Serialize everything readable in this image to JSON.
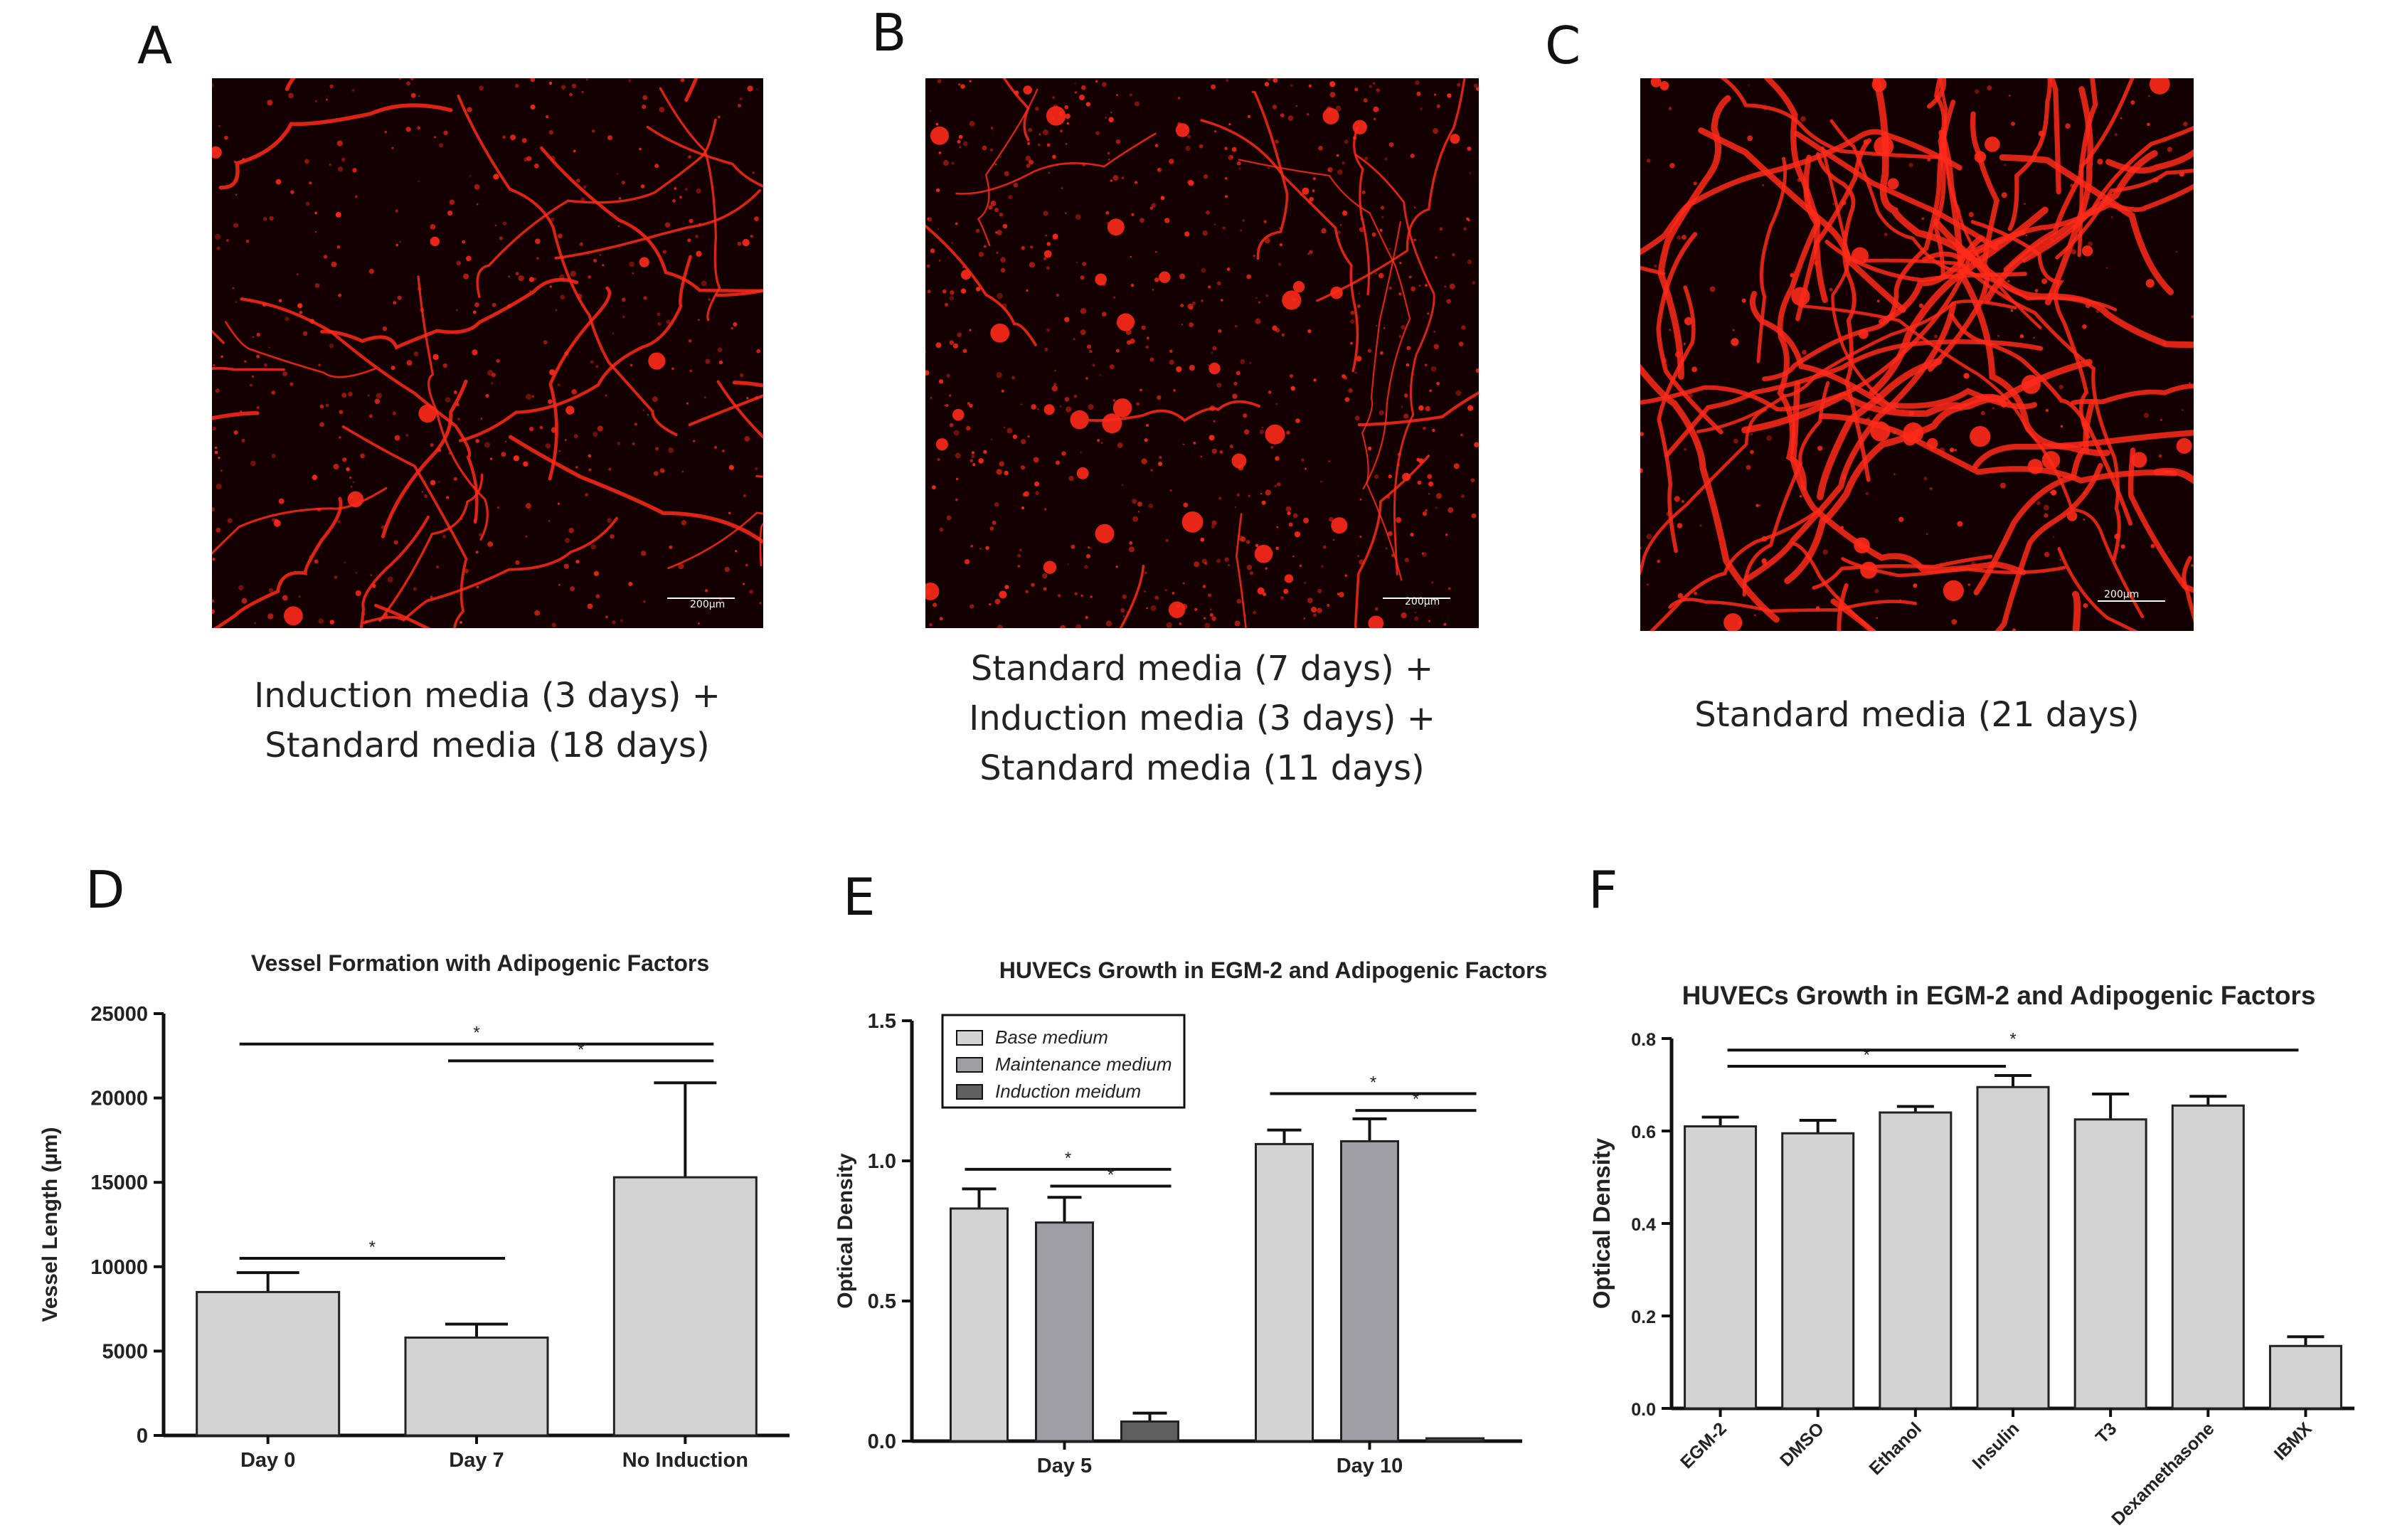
{
  "panels": {
    "A": {
      "letter": "A",
      "scale_bar": "200µm",
      "caption": [
        "Induction media (3 days) +",
        "Standard media (18 days)"
      ]
    },
    "B": {
      "letter": "B",
      "scale_bar": "200µm",
      "caption": [
        "Standard media (7 days) +",
        "Induction media (3 days) +",
        "Standard media (11 days)"
      ]
    },
    "C": {
      "letter": "C",
      "scale_bar": "200µm",
      "caption": [
        "Standard media (21 days)"
      ]
    },
    "D": {
      "letter": "D"
    },
    "E": {
      "letter": "E"
    },
    "F": {
      "letter": "F"
    }
  },
  "colors": {
    "vessel_red": "#ff2a1a",
    "micro_bg": "#140000",
    "bar_light": "#d3d3d3",
    "bar_mid": "#9e9ea3",
    "bar_dark": "#5f5f5f",
    "bar_edge": "#222222"
  },
  "chart_data": [
    {
      "id": "D",
      "type": "bar",
      "title": "Vessel Formation with Adipogenic Factors",
      "xlabel": "",
      "ylabel": "Vessel Length  (µm)",
      "categories": [
        "Day 0",
        "Day 7",
        "No Induction"
      ],
      "values": [
        8500,
        5800,
        15300
      ],
      "errors": [
        1150,
        800,
        5600
      ],
      "ylim": [
        0,
        25000
      ],
      "yticks": [
        "0",
        "5000",
        "10000",
        "15000",
        "20000",
        "25000"
      ],
      "ytick_values": [
        0,
        5000,
        10000,
        15000,
        20000,
        25000
      ],
      "significance": [
        {
          "from": 0,
          "to": 1,
          "y": 10500,
          "label": "*"
        },
        {
          "from": 0,
          "to": 2,
          "y": 23200,
          "label": "*"
        },
        {
          "from": 1,
          "to": 2,
          "y": 22200,
          "label": "*"
        }
      ]
    },
    {
      "id": "E",
      "type": "bar",
      "title": "HUVECs Growth in EGM-2 and Adipogenic Factors",
      "xlabel": "",
      "ylabel": "Optical Density",
      "categories": [
        "Day 5",
        "Day 10"
      ],
      "series": [
        {
          "name": "Base medium",
          "values": [
            0.83,
            1.06
          ],
          "errors": [
            0.07,
            0.05
          ]
        },
        {
          "name": "Maintenance medium",
          "values": [
            0.78,
            1.07
          ],
          "errors": [
            0.09,
            0.08
          ]
        },
        {
          "name": "Induction meidum",
          "values": [
            0.07,
            0.01
          ],
          "errors": [
            0.03,
            0.0
          ]
        }
      ],
      "ylim": [
        0,
        1.5
      ],
      "yticks": [
        "0.0",
        "0.5",
        "1.0",
        "1.5"
      ],
      "ytick_values": [
        0,
        0.5,
        1.0,
        1.5
      ],
      "legend_position": "top-left",
      "significance": [
        {
          "group": 0,
          "from": 0,
          "to": 2,
          "y": 0.97,
          "label": "*"
        },
        {
          "group": 0,
          "from": 1,
          "to": 2,
          "y": 0.91,
          "label": "*"
        },
        {
          "group": 1,
          "from": 0,
          "to": 2,
          "y": 1.24,
          "label": "*"
        },
        {
          "group": 1,
          "from": 1,
          "to": 2,
          "y": 1.18,
          "label": "*"
        }
      ]
    },
    {
      "id": "F",
      "type": "bar",
      "title": "HUVECs Growth in EGM-2 and Adipogenic Factors",
      "xlabel": "",
      "ylabel": "Optical Density",
      "categories": [
        "EGM-2",
        "DMSO",
        "Ethanol",
        "Insulin",
        "T3",
        "Dexamethasone",
        "IBMX"
      ],
      "values": [
        0.61,
        0.595,
        0.64,
        0.695,
        0.625,
        0.655,
        0.135
      ],
      "errors": [
        0.02,
        0.028,
        0.013,
        0.025,
        0.055,
        0.02,
        0.02
      ],
      "ylim": [
        0,
        0.8
      ],
      "yticks": [
        "0.0",
        "0.2",
        "0.4",
        "0.6",
        "0.8"
      ],
      "ytick_values": [
        0,
        0.2,
        0.4,
        0.6,
        0.8
      ],
      "significance": [
        {
          "from": 0,
          "to": 3,
          "y": 0.74,
          "label": "*"
        },
        {
          "from": 0,
          "to": 6,
          "y": 0.775,
          "label": "*"
        }
      ]
    }
  ]
}
